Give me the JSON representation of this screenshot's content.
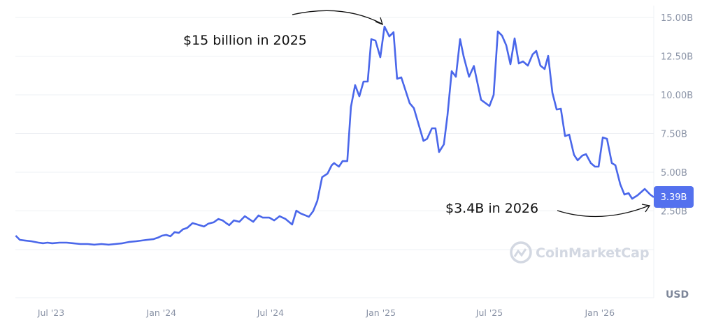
{
  "chart_data": {
    "type": "line",
    "currency_label": "USD",
    "y_tick_labels": [
      "15.00B",
      "12.50B",
      "10.00B",
      "7.50B",
      "5.00B",
      "2.50B"
    ],
    "y_ticks": [
      15,
      12.5,
      10,
      7.5,
      5,
      2.5
    ],
    "x_tick_labels": [
      "Jul '23",
      "Jan '24",
      "Jul '24",
      "Jan '25",
      "Jul '25",
      "Jan '26"
    ],
    "x_ticks": [
      "2023-07-01",
      "2024-01-01",
      "2024-07-01",
      "2025-01-01",
      "2025-07-01",
      "2026-01-01"
    ],
    "ylim": [
      0,
      15.68
    ],
    "xlim": [
      "2023-05-01",
      "2026-04-01"
    ],
    "y_unit": "billion USD",
    "grid": true,
    "line_color": "#4a67ea",
    "current_value_label": "3.39B",
    "watermark": "CoinMarketCap",
    "annotations": [
      {
        "text": "$15 billion in 2025",
        "points_to": "2025-01-07"
      },
      {
        "text": "$3.4B in 2026",
        "points_to": "2026-04-01"
      }
    ],
    "series": [
      {
        "points": [
          [
            "2023-05-03",
            0.9
          ],
          [
            "2023-05-10",
            0.63
          ],
          [
            "2023-05-18",
            0.59
          ],
          [
            "2023-05-29",
            0.54
          ],
          [
            "2023-06-10",
            0.45
          ],
          [
            "2023-06-18",
            0.41
          ],
          [
            "2023-06-25",
            0.45
          ],
          [
            "2023-07-03",
            0.41
          ],
          [
            "2023-07-15",
            0.45
          ],
          [
            "2023-07-27",
            0.45
          ],
          [
            "2023-08-07",
            0.41
          ],
          [
            "2023-08-19",
            0.36
          ],
          [
            "2023-08-31",
            0.36
          ],
          [
            "2023-09-11",
            0.32
          ],
          [
            "2023-09-23",
            0.36
          ],
          [
            "2023-10-05",
            0.32
          ],
          [
            "2023-10-16",
            0.36
          ],
          [
            "2023-10-28",
            0.41
          ],
          [
            "2023-11-09",
            0.5
          ],
          [
            "2023-11-20",
            0.54
          ],
          [
            "2023-12-08",
            0.63
          ],
          [
            "2023-12-19",
            0.68
          ],
          [
            "2023-12-26",
            0.77
          ],
          [
            "2024-01-02",
            0.9
          ],
          [
            "2024-01-09",
            0.95
          ],
          [
            "2024-01-16",
            0.86
          ],
          [
            "2024-01-23",
            1.13
          ],
          [
            "2024-01-30",
            1.08
          ],
          [
            "2024-02-06",
            1.31
          ],
          [
            "2024-02-13",
            1.4
          ],
          [
            "2024-02-22",
            1.71
          ],
          [
            "2024-03-01",
            1.62
          ],
          [
            "2024-03-12",
            1.49
          ],
          [
            "2024-03-19",
            1.67
          ],
          [
            "2024-03-28",
            1.76
          ],
          [
            "2024-04-05",
            1.98
          ],
          [
            "2024-04-12",
            1.89
          ],
          [
            "2024-04-18",
            1.71
          ],
          [
            "2024-04-23",
            1.58
          ],
          [
            "2024-05-01",
            1.89
          ],
          [
            "2024-05-10",
            1.8
          ],
          [
            "2024-05-19",
            2.16
          ],
          [
            "2024-05-26",
            1.98
          ],
          [
            "2024-06-02",
            1.8
          ],
          [
            "2024-06-11",
            2.21
          ],
          [
            "2024-06-18",
            2.07
          ],
          [
            "2024-06-29",
            2.07
          ],
          [
            "2024-07-07",
            1.89
          ],
          [
            "2024-07-16",
            2.16
          ],
          [
            "2024-07-26",
            1.98
          ],
          [
            "2024-08-06",
            1.62
          ],
          [
            "2024-08-13",
            2.52
          ],
          [
            "2024-08-20",
            2.34
          ],
          [
            "2024-09-03",
            2.12
          ],
          [
            "2024-09-10",
            2.48
          ],
          [
            "2024-09-17",
            3.15
          ],
          [
            "2024-09-25",
            4.68
          ],
          [
            "2024-10-04",
            4.91
          ],
          [
            "2024-10-11",
            5.45
          ],
          [
            "2024-10-15",
            5.59
          ],
          [
            "2024-10-23",
            5.36
          ],
          [
            "2024-10-29",
            5.72
          ],
          [
            "2024-11-06",
            5.72
          ],
          [
            "2024-11-12",
            9.23
          ],
          [
            "2024-11-19",
            10.63
          ],
          [
            "2024-11-26",
            9.91
          ],
          [
            "2024-12-03",
            10.86
          ],
          [
            "2024-12-10",
            10.86
          ],
          [
            "2024-12-16",
            13.6
          ],
          [
            "2024-12-23",
            13.51
          ],
          [
            "2024-12-31",
            12.43
          ],
          [
            "2025-01-07",
            14.41
          ],
          [
            "2025-01-15",
            13.78
          ],
          [
            "2025-01-22",
            14.05
          ],
          [
            "2025-01-28",
            11.04
          ],
          [
            "2025-02-04",
            11.13
          ],
          [
            "2025-02-18",
            9.46
          ],
          [
            "2025-02-25",
            9.14
          ],
          [
            "2025-03-13",
            7.03
          ],
          [
            "2025-03-19",
            7.16
          ],
          [
            "2025-03-27",
            7.84
          ],
          [
            "2025-04-02",
            7.84
          ],
          [
            "2025-04-08",
            6.31
          ],
          [
            "2025-04-16",
            6.8
          ],
          [
            "2025-04-22",
            8.69
          ],
          [
            "2025-04-29",
            11.53
          ],
          [
            "2025-05-06",
            11.17
          ],
          [
            "2025-05-13",
            13.6
          ],
          [
            "2025-05-19",
            12.48
          ],
          [
            "2025-05-28",
            11.17
          ],
          [
            "2025-06-05",
            11.87
          ],
          [
            "2025-06-17",
            9.68
          ],
          [
            "2025-07-01",
            9.28
          ],
          [
            "2025-07-08",
            10.0
          ],
          [
            "2025-07-15",
            14.1
          ],
          [
            "2025-07-22",
            13.83
          ],
          [
            "2025-07-29",
            13.2
          ],
          [
            "2025-08-05",
            11.98
          ],
          [
            "2025-08-12",
            13.65
          ],
          [
            "2025-08-19",
            12.03
          ],
          [
            "2025-08-26",
            12.16
          ],
          [
            "2025-09-03",
            11.89
          ],
          [
            "2025-09-11",
            12.61
          ],
          [
            "2025-09-17",
            12.84
          ],
          [
            "2025-09-24",
            11.89
          ],
          [
            "2025-10-01",
            11.67
          ],
          [
            "2025-10-07",
            12.52
          ],
          [
            "2025-10-14",
            10.14
          ],
          [
            "2025-10-21",
            9.05
          ],
          [
            "2025-10-28",
            9.1
          ],
          [
            "2025-11-04",
            7.34
          ],
          [
            "2025-11-11",
            7.43
          ],
          [
            "2025-11-19",
            6.13
          ],
          [
            "2025-11-25",
            5.77
          ],
          [
            "2025-12-03",
            6.08
          ],
          [
            "2025-12-09",
            6.17
          ],
          [
            "2025-12-17",
            5.59
          ],
          [
            "2025-12-24",
            5.36
          ],
          [
            "2025-12-30",
            5.36
          ],
          [
            "2026-01-06",
            7.25
          ],
          [
            "2026-01-13",
            7.16
          ],
          [
            "2026-01-21",
            5.59
          ],
          [
            "2026-01-27",
            5.45
          ],
          [
            "2026-02-04",
            4.23
          ],
          [
            "2026-02-11",
            3.56
          ],
          [
            "2026-02-18",
            3.65
          ],
          [
            "2026-02-24",
            3.29
          ],
          [
            "2026-03-05",
            3.51
          ],
          [
            "2026-03-17",
            3.92
          ],
          [
            "2026-03-26",
            3.56
          ],
          [
            "2026-04-01",
            3.39
          ]
        ]
      }
    ]
  }
}
